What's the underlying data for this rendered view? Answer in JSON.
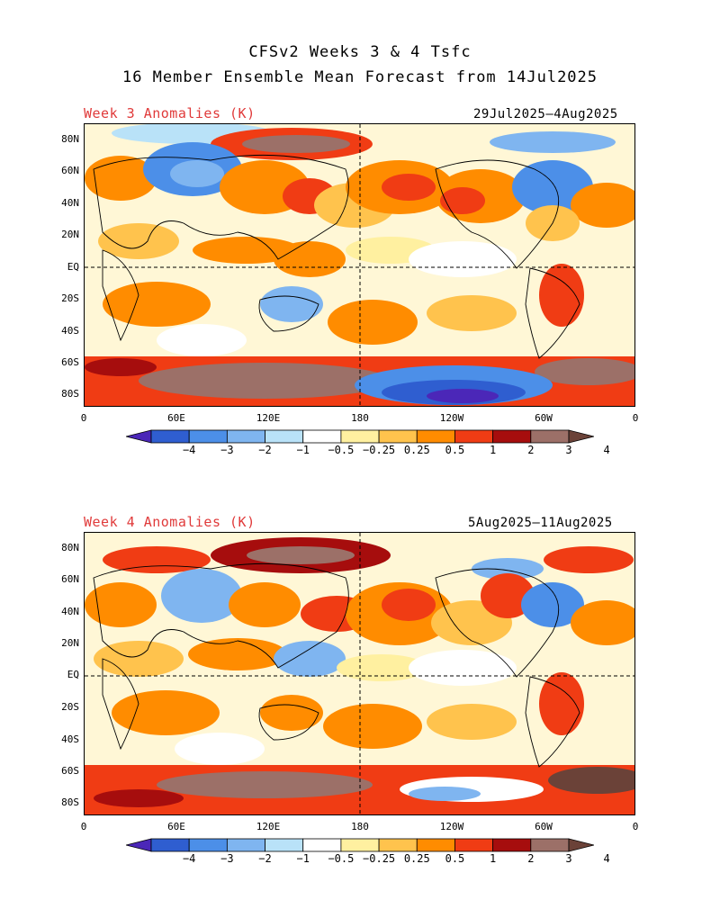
{
  "title": {
    "line1": "CFSv2 Weeks 3 & 4 Tsfc",
    "line2": "16 Member Ensemble Mean Forecast from 14Jul2025"
  },
  "panels": [
    {
      "label": "Week 3 Anomalies (K)",
      "dates": "29Jul2025—4Aug2025"
    },
    {
      "label": "Week 4 Anomalies (K)",
      "dates": "5Aug2025—11Aug2025"
    }
  ],
  "lat_ticks": [
    "80N",
    "60N",
    "40N",
    "20N",
    "EQ",
    "20S",
    "40S",
    "60S",
    "80S"
  ],
  "lon_ticks": [
    "0",
    "60E",
    "120E",
    "180",
    "120W",
    "60W",
    "0"
  ],
  "colorbar": {
    "labels": [
      "−4",
      "−3",
      "−2",
      "−1",
      "−0.5",
      "−0.25",
      "0.25",
      "0.5",
      "1",
      "2",
      "3",
      "4"
    ],
    "colors": [
      "#4b27b8",
      "#2f5ed0",
      "#4c8fe8",
      "#7fb5f0",
      "#b9e2f8",
      "#ffffff",
      "#fff0a0",
      "#ffc34d",
      "#ff8c00",
      "#f03c14",
      "#a60d0d",
      "#9c7068",
      "#6b4238"
    ]
  },
  "colors": {
    "title_text": "#000000",
    "panel_label": "#e03a3a",
    "warm": "#ff8c00",
    "cold": "#4c8fe8"
  }
}
